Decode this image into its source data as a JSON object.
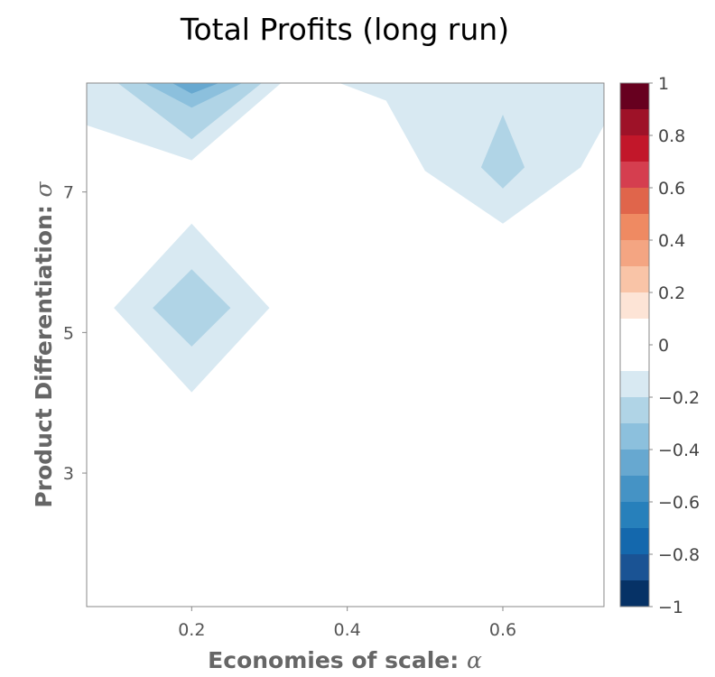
{
  "chart_data": {
    "type": "heatmap",
    "title": "Total Profits (long run)",
    "xlabel": "Economies of scale: ",
    "xlabel_symbol": "α",
    "ylabel": "Product Differentiation: ",
    "ylabel_symbol": "σ",
    "xlim": [
      0.065,
      0.73
    ],
    "ylim": [
      1.1,
      8.55
    ],
    "x_ticks": [
      "0.2",
      "0.4",
      "0.6"
    ],
    "x_tick_values": [
      0.2,
      0.4,
      0.6
    ],
    "y_ticks": [
      "3",
      "5",
      "7"
    ],
    "y_tick_values": [
      3,
      5,
      7
    ],
    "grid": false,
    "colorbar": {
      "min": -1,
      "max": 1,
      "ticks": [
        "1",
        "0.8",
        "0.6",
        "0.4",
        "0.2",
        "0",
        "−0.2",
        "−0.4",
        "−0.6",
        "−0.8",
        "−1"
      ],
      "tick_values": [
        1,
        0.8,
        0.6,
        0.4,
        0.2,
        0,
        -0.2,
        -0.4,
        -0.6,
        -0.8,
        -1
      ],
      "levels": [
        {
          "value": 0.95,
          "color": "#67001f"
        },
        {
          "value": 0.85,
          "color": "#9e1228"
        },
        {
          "value": 0.75,
          "color": "#c2172a"
        },
        {
          "value": 0.65,
          "color": "#d53e4f"
        },
        {
          "value": 0.55,
          "color": "#e0654b"
        },
        {
          "value": 0.45,
          "color": "#ef8a62"
        },
        {
          "value": 0.35,
          "color": "#f4a582"
        },
        {
          "value": 0.25,
          "color": "#f9c4a7"
        },
        {
          "value": 0.15,
          "color": "#fde4d6"
        },
        {
          "value": 0.05,
          "color": "#ffffff"
        },
        {
          "value": -0.05,
          "color": "#ffffff"
        },
        {
          "value": -0.15,
          "color": "#d8e9f2"
        },
        {
          "value": -0.25,
          "color": "#b0d4e6"
        },
        {
          "value": -0.35,
          "color": "#8cc0dd"
        },
        {
          "value": -0.45,
          "color": "#67a8d0"
        },
        {
          "value": -0.55,
          "color": "#4593c5"
        },
        {
          "value": -0.65,
          "color": "#2780bb"
        },
        {
          "value": -0.75,
          "color": "#1468ad"
        },
        {
          "value": -0.85,
          "color": "#1a5394"
        },
        {
          "value": -0.95,
          "color": "#063266"
        }
      ]
    },
    "grid_x": [
      0.1,
      0.2,
      0.3,
      0.4,
      0.5,
      0.6,
      0.7
    ],
    "grid_y": [
      1,
      2,
      3,
      4,
      5,
      6,
      7,
      8,
      9
    ],
    "values": [
      [
        0,
        0,
        0,
        0,
        0,
        0,
        0
      ],
      [
        0,
        0,
        0,
        0,
        0,
        0,
        0
      ],
      [
        0,
        0,
        0,
        0,
        0,
        0,
        0
      ],
      [
        0,
        0,
        0,
        0,
        0,
        0,
        0
      ],
      [
        0,
        -0.25,
        0,
        0,
        0,
        0,
        0
      ],
      [
        0,
        0,
        0,
        0,
        0,
        0,
        0
      ],
      [
        0,
        0,
        0,
        0,
        0,
        -0.25,
        0
      ],
      [
        0,
        -0.15,
        0,
        0,
        -0.15,
        -0.15,
        -0.15
      ],
      [
        -0.15,
        -0.55,
        -0.15,
        0,
        -0.15,
        -0.15,
        -0.15
      ]
    ],
    "regions": [
      {
        "level": -0.15,
        "points": [
          [
            0.065,
            8.55
          ],
          [
            0.315,
            8.55
          ],
          [
            0.2,
            7.45
          ],
          [
            0.065,
            7.95
          ]
        ]
      },
      {
        "level": -0.25,
        "points": [
          [
            0.105,
            8.55
          ],
          [
            0.29,
            8.55
          ],
          [
            0.2,
            7.75
          ]
        ]
      },
      {
        "level": -0.35,
        "points": [
          [
            0.14,
            8.55
          ],
          [
            0.265,
            8.55
          ],
          [
            0.2,
            8.2
          ]
        ]
      },
      {
        "level": -0.45,
        "points": [
          [
            0.175,
            8.55
          ],
          [
            0.235,
            8.55
          ],
          [
            0.2,
            8.4
          ]
        ]
      },
      {
        "level": -0.15,
        "points": [
          [
            0.39,
            8.55
          ],
          [
            0.73,
            8.55
          ],
          [
            0.73,
            7.95
          ],
          [
            0.7,
            7.35
          ],
          [
            0.6,
            6.55
          ],
          [
            0.5,
            7.3
          ],
          [
            0.45,
            8.3
          ]
        ]
      },
      {
        "level": -0.25,
        "points": [
          [
            0.6,
            8.1
          ],
          [
            0.628,
            7.35
          ],
          [
            0.6,
            7.05
          ],
          [
            0.572,
            7.35
          ]
        ]
      },
      {
        "level": -0.15,
        "points": [
          [
            0.2,
            6.55
          ],
          [
            0.3,
            5.35
          ],
          [
            0.2,
            4.15
          ],
          [
            0.1,
            5.35
          ]
        ]
      },
      {
        "level": -0.25,
        "points": [
          [
            0.2,
            5.9
          ],
          [
            0.25,
            5.35
          ],
          [
            0.2,
            4.8
          ],
          [
            0.15,
            5.35
          ]
        ]
      }
    ]
  }
}
